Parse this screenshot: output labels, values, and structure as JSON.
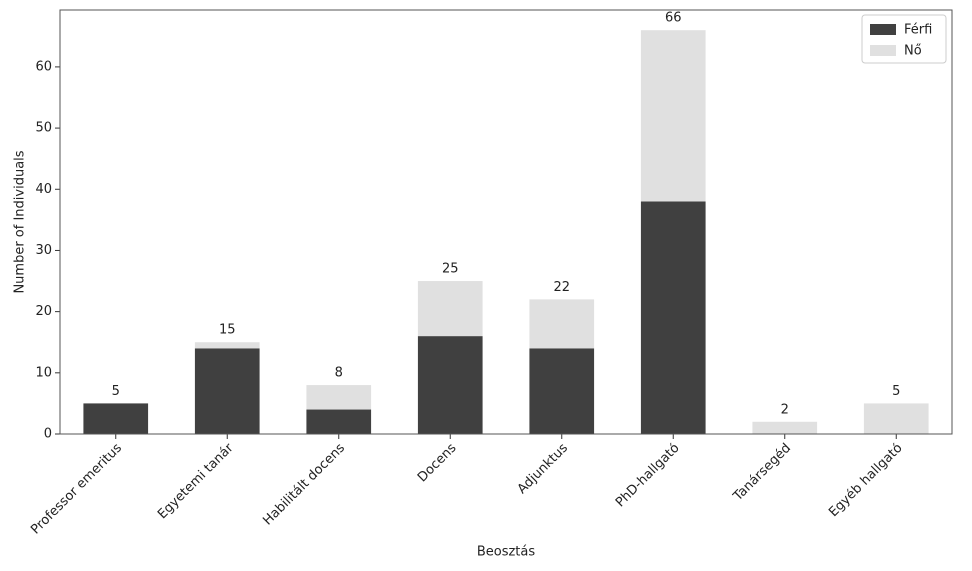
{
  "chart_data": {
    "type": "stacked_bar",
    "categories": [
      "Professor emeritus",
      "Egyetemi tanár",
      "Habilitált docens",
      "Docens",
      "Adjunktus",
      "PhD-hallgató",
      "Tanársegéd",
      "Egyéb hallgató"
    ],
    "series": [
      {
        "name": "Férfi",
        "color": "#404040",
        "values": [
          5,
          14,
          4,
          16,
          14,
          38,
          0,
          0
        ]
      },
      {
        "name": "Nő",
        "color": "#e0e0e0",
        "values": [
          0,
          1,
          4,
          9,
          8,
          28,
          2,
          5
        ]
      }
    ],
    "totals": [
      5,
      15,
      8,
      25,
      22,
      66,
      2,
      5
    ],
    "x_label": "Beosztás",
    "y_label": "Number of Individuals",
    "ylim": [
      0,
      69.3
    ],
    "yticks": [
      0,
      10,
      20,
      30,
      40,
      50,
      60
    ],
    "legend": "upper-right"
  }
}
